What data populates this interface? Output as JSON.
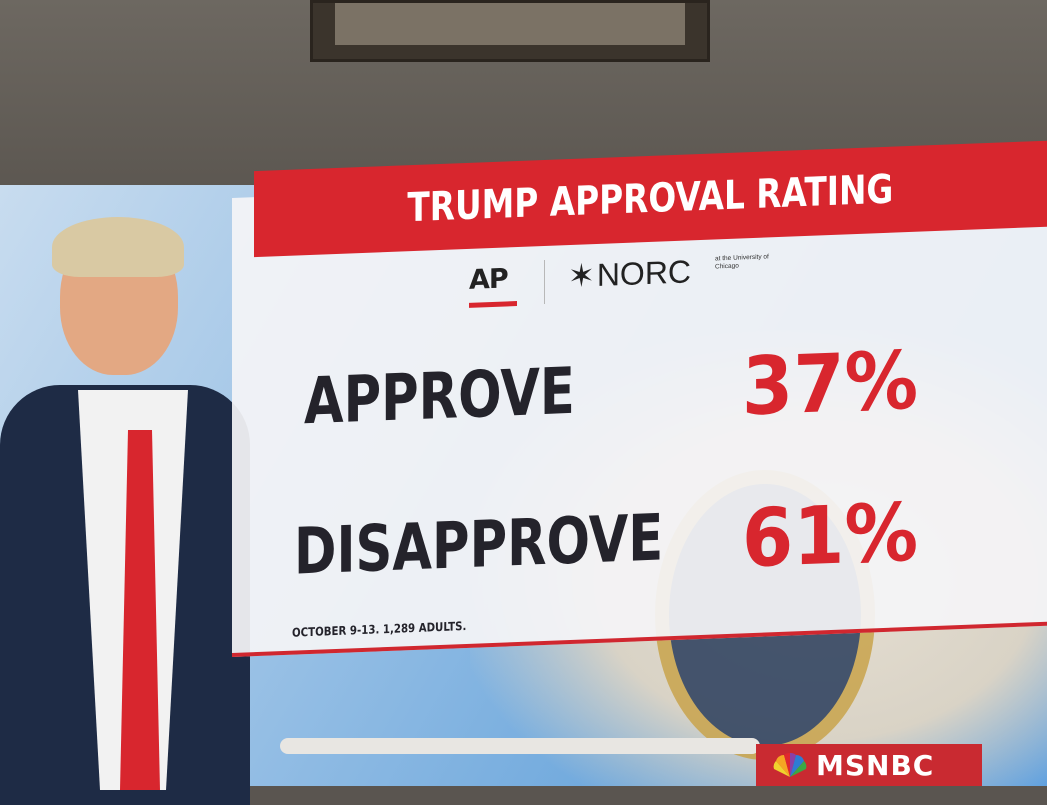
{
  "banner": {
    "title": "TRUMP APPROVAL RATING"
  },
  "logos": {
    "ap": "AP",
    "norc": "NORC",
    "norc_affiliation": "at the University of Chicago"
  },
  "poll": {
    "approve_label": "APPROVE",
    "approve_value": "37%",
    "disapprove_label": "DISAPPROVE",
    "disapprove_value": "61%",
    "footnote": "OCTOBER 9-13. 1,289 ADULTS."
  },
  "network": {
    "name": "MSNBC"
  },
  "colors": {
    "accent_red": "#d8262e",
    "text_dark": "#24232b",
    "panel": "#f4f4f6"
  }
}
